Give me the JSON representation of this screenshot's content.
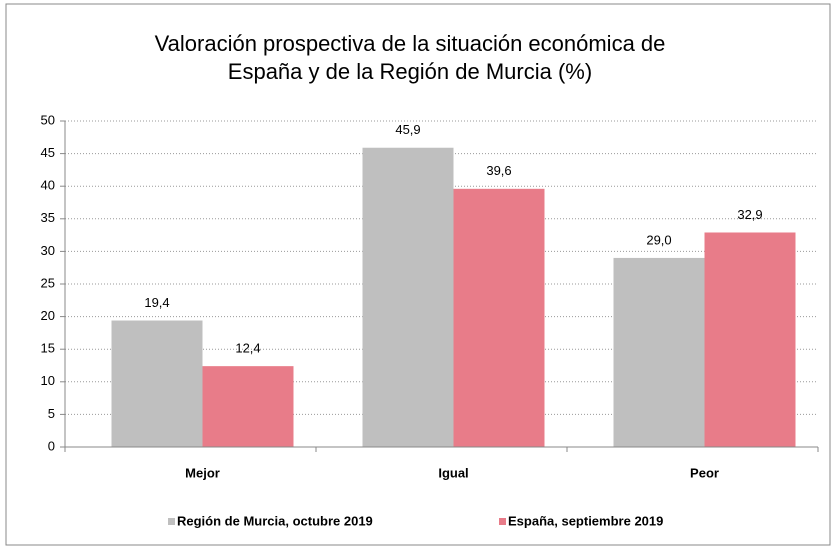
{
  "chart_data": {
    "type": "bar",
    "title": [
      "Valoración prospectiva de la situación económica de",
      "España y  de la Región de Murcia (%)"
    ],
    "categories": [
      "Mejor",
      "Igual",
      "Peor"
    ],
    "series": [
      {
        "name": "Región de Murcia, octubre 2019",
        "color": "#bfbfbf",
        "values": [
          19.4,
          45.9,
          29.0
        ],
        "value_labels": [
          "19,4",
          "45,9",
          "29,0"
        ]
      },
      {
        "name": "España, septiembre 2019",
        "color": "#e87c89",
        "values": [
          12.4,
          39.6,
          32.9
        ],
        "value_labels": [
          "12,4",
          "39,6",
          "32,9"
        ]
      }
    ],
    "ylim": [
      0,
      50
    ],
    "yticks": [
      0,
      5,
      10,
      15,
      20,
      25,
      30,
      35,
      40,
      45,
      50
    ],
    "grid": true,
    "legend": "bottom"
  }
}
